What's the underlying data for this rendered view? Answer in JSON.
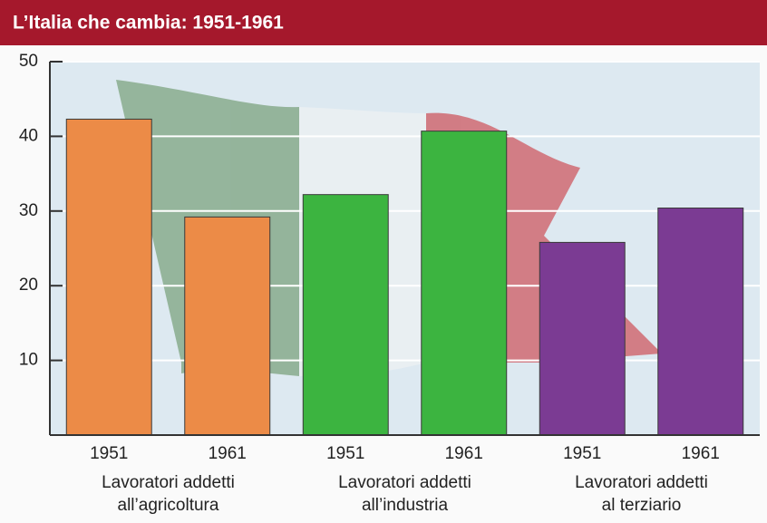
{
  "chart_data": {
    "type": "bar",
    "title": "L’Italia che cambia: 1951-1961",
    "categories": [
      "1951",
      "1961"
    ],
    "series": [
      {
        "label": [
          "Lavoratori addetti",
          "all’agricoltura"
        ],
        "color": "#ec8b47",
        "values": [
          42.3,
          29.2
        ]
      },
      {
        "label": [
          "Lavoratori addetti",
          "all’industria"
        ],
        "color": "#3cb440",
        "values": [
          32.2,
          40.7
        ]
      },
      {
        "label": [
          "Lavoratori addetti",
          "al terziario"
        ],
        "color": "#7b3b93",
        "values": [
          25.8,
          30.4
        ]
      }
    ],
    "ylim": [
      0,
      50
    ],
    "yticks": [
      10,
      20,
      30,
      40,
      50
    ],
    "grid": true
  }
}
